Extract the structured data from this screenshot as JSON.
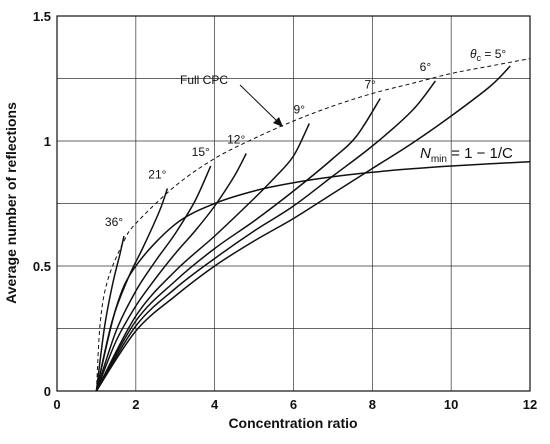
{
  "chart_data": {
    "type": "line",
    "title": "",
    "xlabel": "Concentration ratio",
    "ylabel": "Average number of reflections",
    "xlim": [
      0,
      12
    ],
    "ylim": [
      0,
      1.5
    ],
    "xticks": [
      "0",
      "2",
      "4",
      "6",
      "8",
      "10",
      "12"
    ],
    "yticks": [
      "0",
      "0.5",
      "1",
      "1.5"
    ],
    "grid": true,
    "series": [
      {
        "name": "36°",
        "x": [
          1.0,
          1.2,
          1.4,
          1.6,
          1.7
        ],
        "y": [
          0.0,
          0.25,
          0.42,
          0.55,
          0.62
        ]
      },
      {
        "name": "21°",
        "x": [
          1.0,
          1.4,
          1.8,
          2.2,
          2.6,
          2.8
        ],
        "y": [
          0.0,
          0.28,
          0.45,
          0.58,
          0.72,
          0.81
        ]
      },
      {
        "name": "15°",
        "x": [
          1.0,
          1.5,
          2.0,
          2.5,
          3.0,
          3.5,
          3.9
        ],
        "y": [
          0.0,
          0.24,
          0.4,
          0.52,
          0.63,
          0.76,
          0.9
        ]
      },
      {
        "name": "12°",
        "x": [
          1.0,
          1.5,
          2.0,
          2.5,
          3.0,
          3.5,
          4.0,
          4.5,
          4.8
        ],
        "y": [
          0.0,
          0.2,
          0.34,
          0.45,
          0.55,
          0.64,
          0.74,
          0.86,
          0.95
        ]
      },
      {
        "name": "9°",
        "x": [
          1.0,
          2.0,
          3.0,
          4.0,
          5.0,
          5.5,
          6.0,
          6.4
        ],
        "y": [
          0.0,
          0.3,
          0.48,
          0.62,
          0.77,
          0.85,
          0.94,
          1.07
        ]
      },
      {
        "name": "7°",
        "x": [
          1.0,
          2.0,
          3.0,
          4.0,
          5.0,
          6.0,
          7.0,
          7.6,
          8.2
        ],
        "y": [
          0.0,
          0.28,
          0.44,
          0.57,
          0.68,
          0.8,
          0.93,
          1.02,
          1.17
        ]
      },
      {
        "name": "6°",
        "x": [
          1.0,
          2.0,
          3.0,
          4.0,
          5.0,
          6.0,
          7.0,
          8.0,
          9.0,
          9.6
        ],
        "y": [
          0.0,
          0.26,
          0.41,
          0.53,
          0.64,
          0.74,
          0.86,
          0.98,
          1.12,
          1.24
        ]
      },
      {
        "name": "5°",
        "x": [
          1.0,
          2.0,
          3.0,
          4.0,
          5.0,
          6.0,
          7.0,
          8.0,
          9.0,
          10.0,
          11.0,
          11.5
        ],
        "y": [
          0.0,
          0.24,
          0.38,
          0.5,
          0.6,
          0.69,
          0.79,
          0.89,
          0.99,
          1.1,
          1.22,
          1.3
        ]
      },
      {
        "name": "Full CPC",
        "style": "dashed",
        "x": [
          1.0,
          1.1,
          1.3,
          1.7,
          2.0,
          3.0,
          4.0,
          5.0,
          6.0,
          7.0,
          8.0,
          9.0,
          10.0,
          11.0,
          12.0
        ],
        "y": [
          0.0,
          0.28,
          0.45,
          0.6,
          0.67,
          0.82,
          0.93,
          1.01,
          1.08,
          1.14,
          1.19,
          1.23,
          1.27,
          1.3,
          1.33
        ]
      },
      {
        "name": "N_min = 1 − 1/C",
        "x": [
          1.0,
          1.5,
          2.0,
          3.0,
          4.0,
          5.0,
          6.0,
          7.0,
          8.0,
          9.0,
          10.0,
          11.0,
          12.0
        ],
        "y": [
          0.0,
          0.333,
          0.5,
          0.667,
          0.75,
          0.8,
          0.833,
          0.857,
          0.875,
          0.889,
          0.9,
          0.909,
          0.917
        ]
      }
    ],
    "annotations": {
      "full_cpc": "Full CPC",
      "nmin_n": "N",
      "nmin_sub": "min",
      "nmin_rest": " = 1 − 1/C",
      "theta": "θ",
      "theta_sub": "c",
      "theta_rest": " = 5°"
    }
  }
}
